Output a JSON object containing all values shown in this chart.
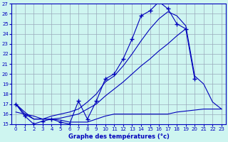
{
  "title": "Graphe des températures (°c)",
  "bg_color": "#cef5f0",
  "line_color": "#0000bb",
  "grid_color": "#99aabb",
  "xlim": [
    -0.5,
    23.5
  ],
  "ylim": [
    15,
    27
  ],
  "xticks": [
    0,
    1,
    2,
    3,
    4,
    5,
    6,
    7,
    8,
    9,
    10,
    11,
    12,
    13,
    14,
    15,
    16,
    17,
    18,
    19,
    20,
    21,
    22,
    23
  ],
  "yticks": [
    15,
    16,
    17,
    18,
    19,
    20,
    21,
    22,
    23,
    24,
    25,
    26,
    27
  ],
  "hours": [
    0,
    1,
    2,
    3,
    4,
    5,
    6,
    7,
    8,
    9,
    10,
    11,
    12,
    13,
    14,
    15,
    16,
    17,
    18,
    19,
    20,
    21,
    22,
    23
  ],
  "temp_main": [
    17.0,
    15.8,
    15.0,
    15.3,
    15.5,
    15.2,
    15.0,
    17.3,
    15.5,
    17.3,
    19.5,
    20.0,
    21.5,
    23.5,
    25.8,
    26.3,
    27.2,
    26.5,
    25.0,
    24.5,
    19.5,
    null,
    null,
    null
  ],
  "temp_min_flat": [
    16.2,
    16.0,
    15.8,
    15.5,
    15.5,
    15.4,
    15.2,
    15.2,
    15.2,
    15.5,
    15.8,
    16.0,
    16.0,
    16.0,
    16.0,
    16.0,
    16.0,
    16.0,
    16.2,
    16.3,
    16.4,
    16.5,
    16.5,
    16.5
  ],
  "trend_low": [
    17.0,
    16.2,
    15.5,
    15.5,
    15.5,
    15.6,
    15.8,
    16.0,
    16.5,
    17.0,
    17.8,
    18.5,
    19.2,
    20.0,
    20.8,
    21.5,
    22.3,
    23.0,
    23.8,
    24.5,
    null,
    null,
    null,
    null
  ],
  "trend_high": [
    17.0,
    16.0,
    15.5,
    15.5,
    15.8,
    16.0,
    16.2,
    16.5,
    17.2,
    18.0,
    19.2,
    19.8,
    20.8,
    22.0,
    23.3,
    24.5,
    25.5,
    26.2,
    25.8,
    24.8,
    19.8,
    19.0,
    17.2,
    16.5
  ]
}
